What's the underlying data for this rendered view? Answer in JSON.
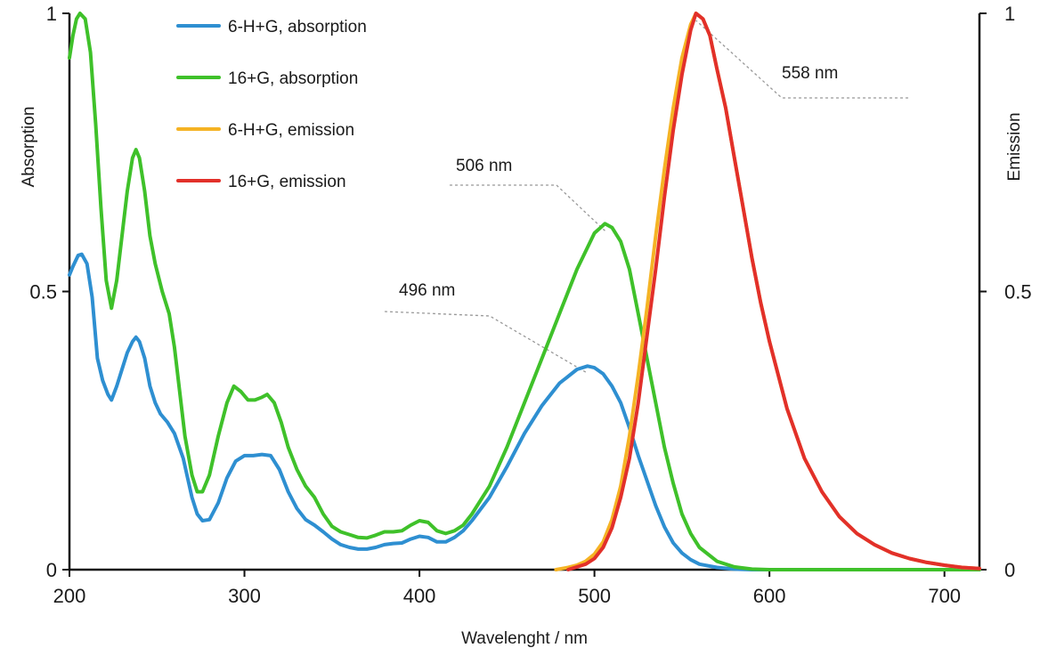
{
  "chart_data": {
    "type": "line",
    "xlabel": "Wavelenght / nm",
    "ylabel_left": "Absorption",
    "ylabel_right": "Emission",
    "xlim": [
      200,
      720
    ],
    "ylim": [
      0,
      1
    ],
    "x_ticks": [
      {
        "value": 200,
        "label": "200"
      },
      {
        "value": 300,
        "label": "300"
      },
      {
        "value": 400,
        "label": "400"
      },
      {
        "value": 500,
        "label": "500"
      },
      {
        "value": 600,
        "label": "600"
      },
      {
        "value": 700,
        "label": "700"
      }
    ],
    "y_ticks_left": [
      {
        "value": 0,
        "label": "0"
      },
      {
        "value": 0.5,
        "label": "0.5"
      },
      {
        "value": 1,
        "label": "1"
      }
    ],
    "y_ticks_right": [
      {
        "value": 0,
        "label": "0"
      },
      {
        "value": 0.5,
        "label": "0.5"
      },
      {
        "value": 1,
        "label": "1"
      }
    ],
    "grid": false,
    "legend_position": "top-left",
    "series": [
      {
        "name": "6-H+G, absorption",
        "color": "#2e8fd1",
        "points": [
          [
            200,
            0.53
          ],
          [
            202,
            0.545
          ],
          [
            205,
            0.565
          ],
          [
            207,
            0.567
          ],
          [
            210,
            0.55
          ],
          [
            213,
            0.49
          ],
          [
            216,
            0.38
          ],
          [
            219,
            0.34
          ],
          [
            222,
            0.315
          ],
          [
            224,
            0.305
          ],
          [
            227,
            0.33
          ],
          [
            230,
            0.36
          ],
          [
            233,
            0.39
          ],
          [
            236,
            0.41
          ],
          [
            238,
            0.418
          ],
          [
            240,
            0.41
          ],
          [
            243,
            0.38
          ],
          [
            246,
            0.33
          ],
          [
            249,
            0.3
          ],
          [
            252,
            0.28
          ],
          [
            256,
            0.265
          ],
          [
            260,
            0.245
          ],
          [
            265,
            0.2
          ],
          [
            270,
            0.13
          ],
          [
            273,
            0.1
          ],
          [
            276,
            0.088
          ],
          [
            280,
            0.09
          ],
          [
            285,
            0.12
          ],
          [
            290,
            0.165
          ],
          [
            295,
            0.195
          ],
          [
            300,
            0.205
          ],
          [
            305,
            0.205
          ],
          [
            310,
            0.207
          ],
          [
            315,
            0.205
          ],
          [
            320,
            0.18
          ],
          [
            325,
            0.14
          ],
          [
            330,
            0.11
          ],
          [
            335,
            0.09
          ],
          [
            340,
            0.08
          ],
          [
            345,
            0.068
          ],
          [
            350,
            0.055
          ],
          [
            355,
            0.045
          ],
          [
            360,
            0.04
          ],
          [
            365,
            0.037
          ],
          [
            370,
            0.037
          ],
          [
            375,
            0.04
          ],
          [
            380,
            0.045
          ],
          [
            385,
            0.047
          ],
          [
            390,
            0.048
          ],
          [
            395,
            0.055
          ],
          [
            400,
            0.06
          ],
          [
            405,
            0.058
          ],
          [
            410,
            0.05
          ],
          [
            415,
            0.05
          ],
          [
            420,
            0.058
          ],
          [
            425,
            0.07
          ],
          [
            430,
            0.088
          ],
          [
            440,
            0.13
          ],
          [
            450,
            0.185
          ],
          [
            460,
            0.245
          ],
          [
            470,
            0.295
          ],
          [
            480,
            0.335
          ],
          [
            490,
            0.36
          ],
          [
            496,
            0.366
          ],
          [
            500,
            0.363
          ],
          [
            505,
            0.352
          ],
          [
            510,
            0.33
          ],
          [
            515,
            0.3
          ],
          [
            520,
            0.255
          ],
          [
            525,
            0.205
          ],
          [
            530,
            0.16
          ],
          [
            535,
            0.115
          ],
          [
            540,
            0.077
          ],
          [
            545,
            0.048
          ],
          [
            550,
            0.03
          ],
          [
            555,
            0.018
          ],
          [
            560,
            0.01
          ],
          [
            570,
            0.004
          ],
          [
            580,
            0.001
          ],
          [
            590,
            0.0
          ],
          [
            720,
            0.0
          ]
        ]
      },
      {
        "name": "16+G, absorption",
        "color": "#3fc12a",
        "points": [
          [
            200,
            0.92
          ],
          [
            202,
            0.96
          ],
          [
            204,
            0.99
          ],
          [
            206,
            1.0
          ],
          [
            209,
            0.99
          ],
          [
            212,
            0.93
          ],
          [
            215,
            0.8
          ],
          [
            218,
            0.65
          ],
          [
            221,
            0.52
          ],
          [
            224,
            0.47
          ],
          [
            227,
            0.52
          ],
          [
            230,
            0.6
          ],
          [
            233,
            0.68
          ],
          [
            236,
            0.74
          ],
          [
            238,
            0.755
          ],
          [
            240,
            0.74
          ],
          [
            243,
            0.68
          ],
          [
            246,
            0.6
          ],
          [
            249,
            0.55
          ],
          [
            253,
            0.5
          ],
          [
            257,
            0.46
          ],
          [
            260,
            0.4
          ],
          [
            263,
            0.32
          ],
          [
            266,
            0.24
          ],
          [
            270,
            0.17
          ],
          [
            273,
            0.14
          ],
          [
            276,
            0.14
          ],
          [
            280,
            0.17
          ],
          [
            285,
            0.24
          ],
          [
            290,
            0.3
          ],
          [
            294,
            0.33
          ],
          [
            298,
            0.32
          ],
          [
            302,
            0.305
          ],
          [
            306,
            0.305
          ],
          [
            310,
            0.31
          ],
          [
            313,
            0.315
          ],
          [
            317,
            0.3
          ],
          [
            321,
            0.265
          ],
          [
            325,
            0.22
          ],
          [
            330,
            0.18
          ],
          [
            335,
            0.15
          ],
          [
            340,
            0.13
          ],
          [
            345,
            0.1
          ],
          [
            350,
            0.078
          ],
          [
            355,
            0.068
          ],
          [
            360,
            0.063
          ],
          [
            365,
            0.058
          ],
          [
            370,
            0.057
          ],
          [
            375,
            0.062
          ],
          [
            380,
            0.068
          ],
          [
            385,
            0.068
          ],
          [
            390,
            0.07
          ],
          [
            395,
            0.08
          ],
          [
            400,
            0.088
          ],
          [
            405,
            0.085
          ],
          [
            410,
            0.07
          ],
          [
            415,
            0.065
          ],
          [
            420,
            0.07
          ],
          [
            425,
            0.08
          ],
          [
            430,
            0.1
          ],
          [
            440,
            0.15
          ],
          [
            450,
            0.22
          ],
          [
            460,
            0.3
          ],
          [
            470,
            0.38
          ],
          [
            480,
            0.46
          ],
          [
            490,
            0.54
          ],
          [
            500,
            0.605
          ],
          [
            506,
            0.622
          ],
          [
            510,
            0.615
          ],
          [
            515,
            0.59
          ],
          [
            520,
            0.54
          ],
          [
            525,
            0.46
          ],
          [
            530,
            0.38
          ],
          [
            535,
            0.3
          ],
          [
            540,
            0.22
          ],
          [
            545,
            0.155
          ],
          [
            550,
            0.1
          ],
          [
            555,
            0.065
          ],
          [
            560,
            0.04
          ],
          [
            570,
            0.015
          ],
          [
            580,
            0.005
          ],
          [
            590,
            0.001
          ],
          [
            600,
            0.0
          ],
          [
            720,
            0.0
          ]
        ]
      },
      {
        "name": "6-H+G, emission",
        "color": "#f5b324",
        "points": [
          [
            478,
            0.0
          ],
          [
            485,
            0.004
          ],
          [
            490,
            0.008
          ],
          [
            495,
            0.015
          ],
          [
            500,
            0.028
          ],
          [
            505,
            0.05
          ],
          [
            510,
            0.09
          ],
          [
            515,
            0.15
          ],
          [
            520,
            0.24
          ],
          [
            525,
            0.35
          ],
          [
            530,
            0.47
          ],
          [
            535,
            0.6
          ],
          [
            540,
            0.72
          ],
          [
            545,
            0.83
          ],
          [
            550,
            0.92
          ],
          [
            555,
            0.98
          ],
          [
            558,
            1.0
          ],
          [
            562,
            0.99
          ],
          [
            566,
            0.96
          ],
          [
            570,
            0.9
          ],
          [
            575,
            0.83
          ],
          [
            580,
            0.74
          ],
          [
            585,
            0.65
          ],
          [
            590,
            0.56
          ],
          [
            595,
            0.48
          ],
          [
            600,
            0.41
          ],
          [
            610,
            0.29
          ],
          [
            620,
            0.2
          ],
          [
            630,
            0.14
          ],
          [
            640,
            0.095
          ],
          [
            650,
            0.065
          ],
          [
            660,
            0.045
          ],
          [
            670,
            0.03
          ],
          [
            680,
            0.02
          ],
          [
            690,
            0.013
          ],
          [
            700,
            0.008
          ],
          [
            710,
            0.004
          ],
          [
            720,
            0.002
          ]
        ]
      },
      {
        "name": "16+G, emission",
        "color": "#e2302a",
        "points": [
          [
            485,
            0.0
          ],
          [
            490,
            0.005
          ],
          [
            495,
            0.01
          ],
          [
            500,
            0.02
          ],
          [
            505,
            0.04
          ],
          [
            510,
            0.075
          ],
          [
            515,
            0.13
          ],
          [
            520,
            0.2
          ],
          [
            525,
            0.3
          ],
          [
            530,
            0.42
          ],
          [
            535,
            0.54
          ],
          [
            540,
            0.67
          ],
          [
            545,
            0.79
          ],
          [
            550,
            0.89
          ],
          [
            555,
            0.97
          ],
          [
            558,
            1.0
          ],
          [
            562,
            0.99
          ],
          [
            566,
            0.96
          ],
          [
            570,
            0.9
          ],
          [
            575,
            0.83
          ],
          [
            580,
            0.74
          ],
          [
            585,
            0.65
          ],
          [
            590,
            0.56
          ],
          [
            595,
            0.48
          ],
          [
            600,
            0.41
          ],
          [
            610,
            0.29
          ],
          [
            620,
            0.2
          ],
          [
            630,
            0.14
          ],
          [
            640,
            0.095
          ],
          [
            650,
            0.065
          ],
          [
            660,
            0.045
          ],
          [
            670,
            0.03
          ],
          [
            680,
            0.02
          ],
          [
            690,
            0.013
          ],
          [
            700,
            0.008
          ],
          [
            710,
            0.004
          ],
          [
            720,
            0.002
          ]
        ]
      }
    ],
    "annotations": [
      {
        "text": "558 nm",
        "peak_x": 558,
        "peak_y": 1.0
      },
      {
        "text": "506 nm",
        "peak_x": 506,
        "peak_y": 0.622
      },
      {
        "text": "496 nm",
        "peak_x": 496,
        "peak_y": 0.366
      }
    ]
  }
}
